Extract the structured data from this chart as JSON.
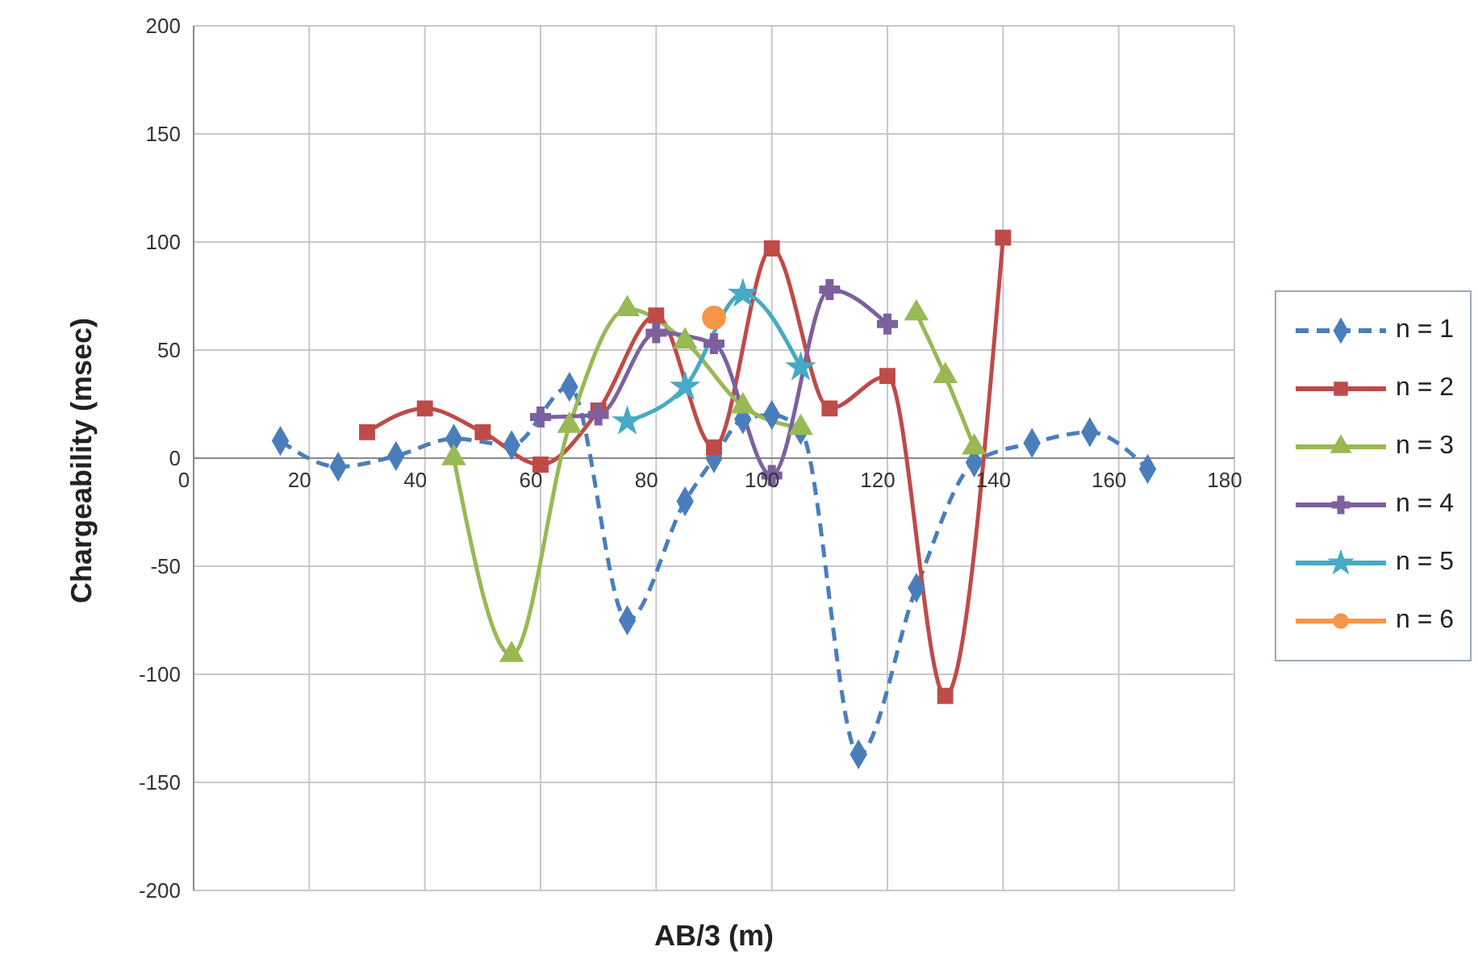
{
  "chart_data": {
    "type": "line",
    "xlabel": "AB/3 (m)",
    "ylabel": "Chargeability (msec)",
    "xlim": [
      0,
      180
    ],
    "xticks": [
      0,
      20,
      40,
      60,
      80,
      100,
      120,
      140,
      160,
      180
    ],
    "ylim": [
      -200,
      200
    ],
    "yticks": [
      -200,
      -150,
      -100,
      -50,
      0,
      50,
      100,
      150,
      200
    ],
    "grid": true,
    "legend": "right",
    "series": [
      {
        "name": "n = 1",
        "color": "#4a7ebb",
        "marker": "diamond",
        "line_style": "dashed",
        "x": [
          15,
          25,
          35,
          45,
          55,
          65,
          75,
          85,
          90,
          95,
          100,
          105,
          115,
          125,
          135,
          145,
          155,
          165
        ],
        "values": [
          8,
          -4,
          1,
          9,
          6,
          33,
          -75,
          -20,
          0,
          18,
          20,
          13,
          -137,
          -60,
          -2,
          7,
          12,
          -5
        ]
      },
      {
        "name": "n = 2",
        "color": "#be4b48",
        "marker": "square",
        "line_style": "solid",
        "x": [
          30,
          40,
          50,
          60,
          70,
          80,
          90,
          100,
          110,
          120,
          130,
          140
        ],
        "values": [
          12,
          23,
          12,
          -3,
          22,
          66,
          5,
          97,
          23,
          38,
          -110,
          102
        ]
      },
      {
        "name": "n = 3",
        "color": "#98b954",
        "marker": "triangle",
        "line_style": "solid",
        "x": [
          45,
          55,
          65,
          75,
          85,
          95,
          105,
          115,
          125,
          130,
          135
        ],
        "values": [
          0,
          -91,
          15,
          69,
          54,
          24,
          14,
          null,
          67,
          38,
          5
        ]
      },
      {
        "name": "n = 4",
        "color": "#7d60a0",
        "marker": "cross",
        "line_style": "solid",
        "x": [
          60,
          70,
          80,
          90,
          100,
          110,
          120
        ],
        "values": [
          19,
          20,
          58,
          53,
          -8,
          78,
          62
        ]
      },
      {
        "name": "n = 5",
        "color": "#46aac5",
        "marker": "star",
        "line_style": "solid",
        "x": [
          75,
          85,
          95,
          105
        ],
        "values": [
          17,
          33,
          76,
          42
        ]
      },
      {
        "name": "n = 6",
        "color": "#f79646",
        "marker": "circle",
        "line_style": "solid",
        "x": [
          90
        ],
        "values": [
          65
        ]
      }
    ]
  }
}
